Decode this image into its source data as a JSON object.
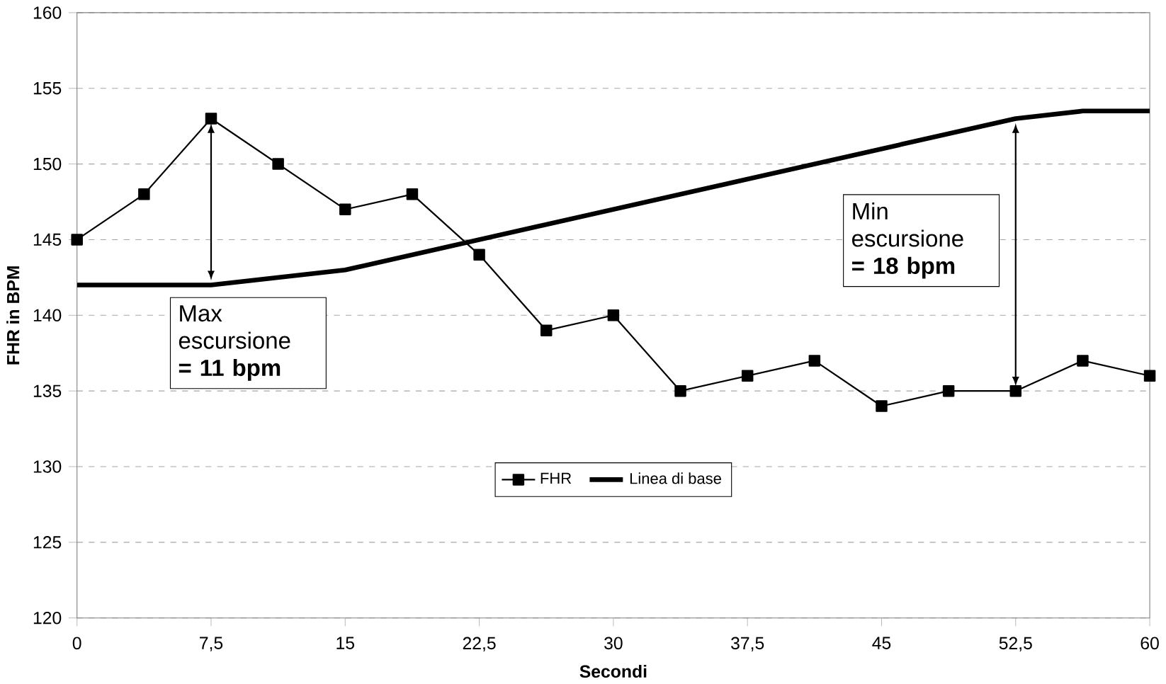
{
  "chart_data": {
    "type": "line",
    "xlabel": "Secondi",
    "ylabel": "FHR in BPM",
    "xlim": [
      0,
      60
    ],
    "xticks": [
      0,
      {
        "value": 7.5,
        "label": "7,5"
      },
      15,
      {
        "value": 22.5,
        "label": "22,5"
      },
      30,
      {
        "value": 37.5,
        "label": "37,5"
      },
      45,
      {
        "value": 52.5,
        "label": "52,5"
      },
      60
    ],
    "ylim": [
      120,
      160
    ],
    "yticks": [
      120,
      125,
      130,
      135,
      140,
      145,
      150,
      155,
      160
    ],
    "grid": "y",
    "legend": "bottom",
    "series": [
      {
        "name": "FHR",
        "color": "#000000",
        "marker": "square",
        "x": [
          0,
          3.75,
          7.5,
          11.25,
          15,
          18.75,
          22.5,
          26.25,
          30,
          33.75,
          37.5,
          41.25,
          45,
          48.75,
          52.5,
          56.25,
          60
        ],
        "values": [
          145,
          148,
          153,
          150,
          147,
          148,
          144,
          139,
          140,
          135,
          136,
          137,
          134,
          135,
          135,
          137,
          136
        ]
      },
      {
        "name": "Linea di base",
        "color": "#000000",
        "marker": "none",
        "x": [
          0,
          7.5,
          15,
          22.5,
          30,
          37.5,
          45,
          52.5,
          56.25,
          60
        ],
        "values": [
          142,
          142,
          143,
          145,
          147,
          149,
          151,
          153,
          153.5,
          153.5
        ]
      }
    ],
    "annotations": [
      "Max escursione **= 11 bpm**",
      "Min escursione **= 18 bpm**"
    ]
  }
}
